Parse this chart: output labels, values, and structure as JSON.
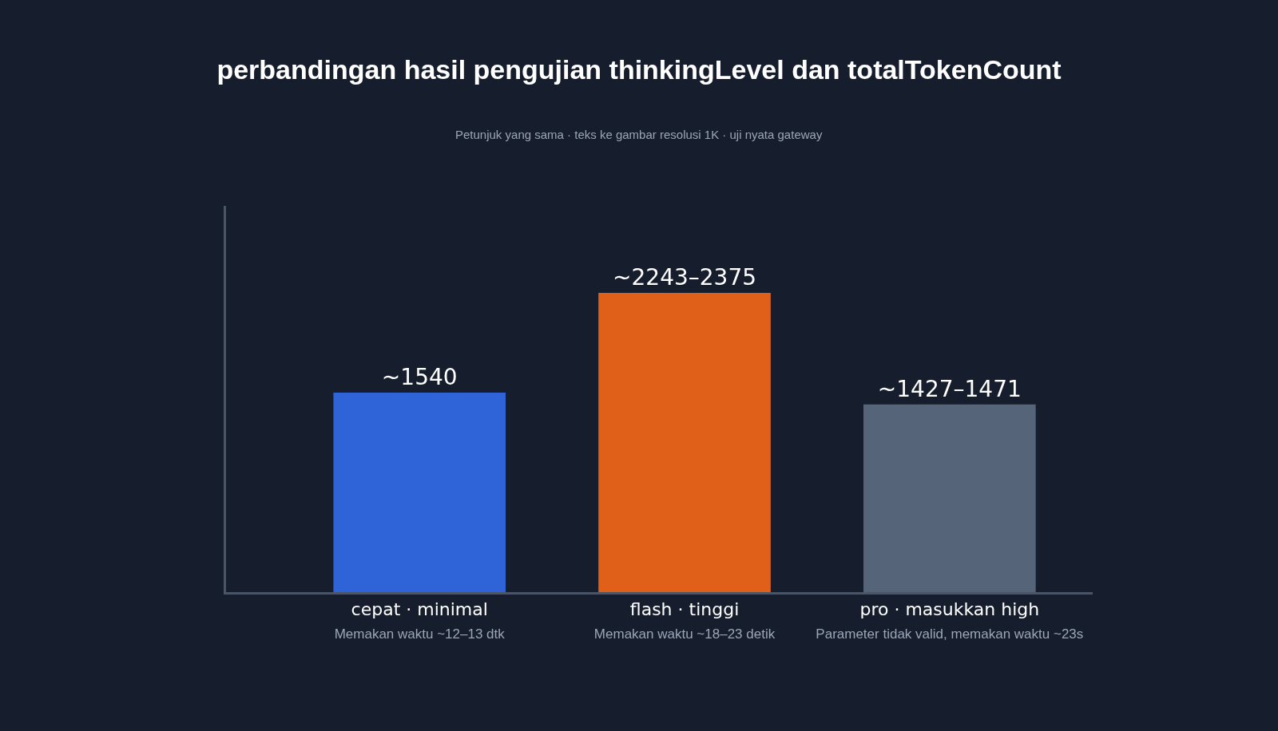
{
  "chart_data": {
    "type": "bar",
    "title": "perbandingan hasil pengujian thinkingLevel dan totalTokenCount",
    "subtitle": "Petunjuk yang sama · teks ke gambar resolusi 1K · uji nyata gateway",
    "categories": [
      "cepat · minimal\nMemakan waktu ~12–13 dtk",
      "flash · tinggi\nMemakan waktu ~18–23 detik",
      "pro · masukkan high\nParameter tidak valid, memakan waktu ~23s"
    ],
    "values": [
      1540,
      2309,
      1449
    ],
    "ylim": [
      0,
      2980
    ],
    "colors": [
      "#2f63d8",
      "#e0601a",
      "#56647a"
    ],
    "value_labels": [
      "~1540",
      "~2243–2375",
      "~1427–1471"
    ],
    "tick_labels": "x",
    "legend": false
  }
}
